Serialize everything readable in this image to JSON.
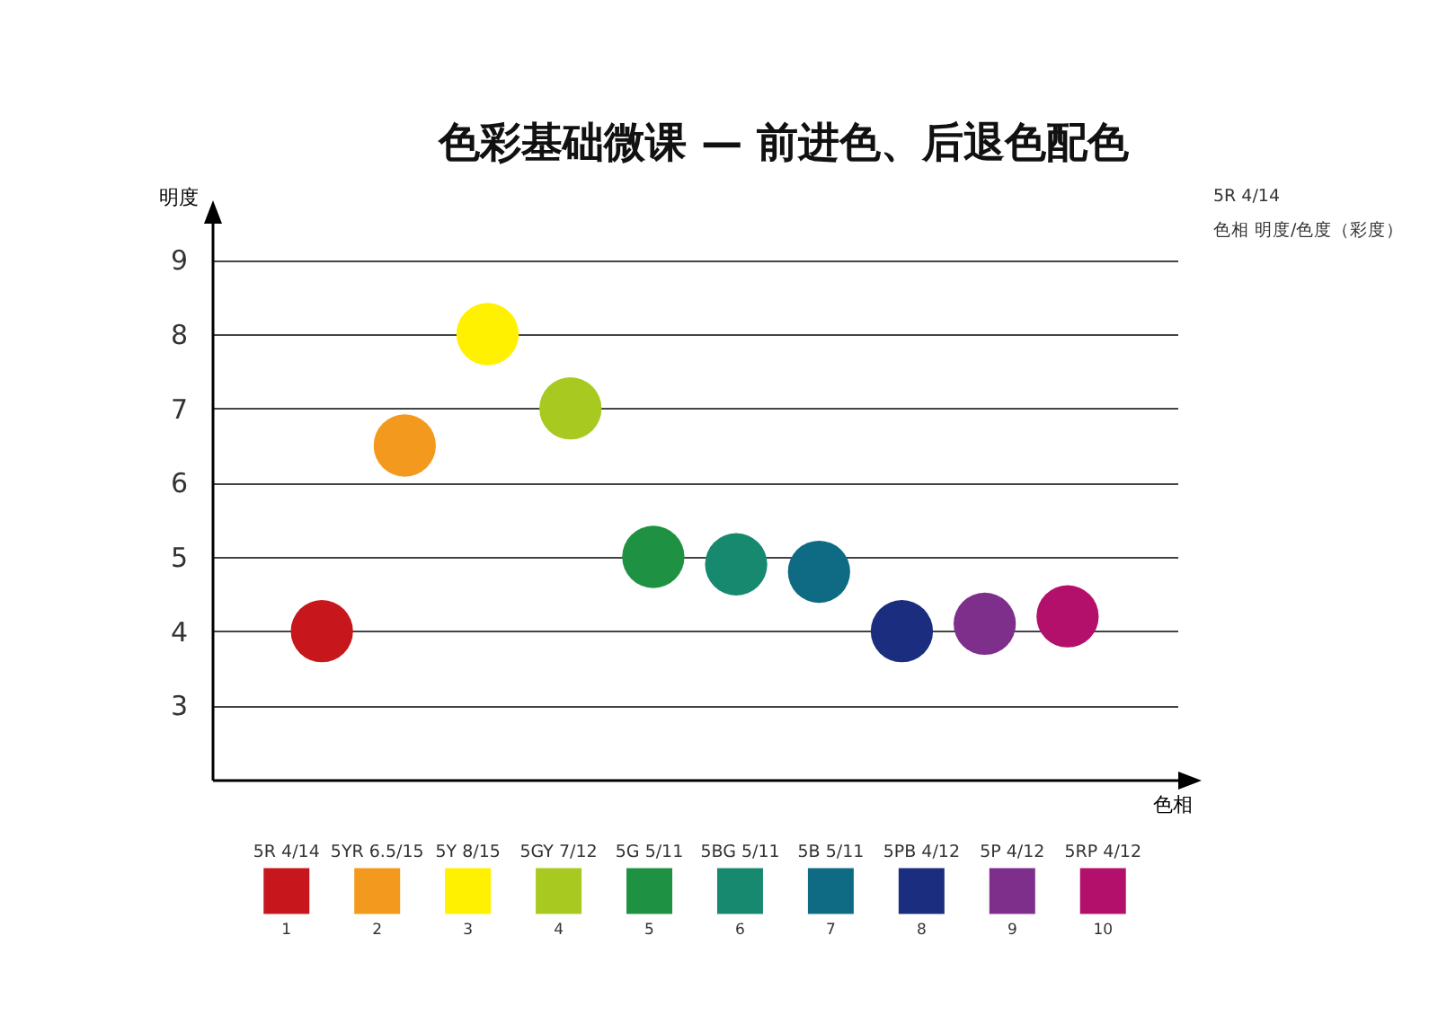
{
  "chart_data": {
    "type": "scatter",
    "title": "色彩基础微课 — 前进色、后退色配色",
    "xlabel": "色相",
    "ylabel": "明度",
    "categories": [
      "5R 4/14",
      "5YR 6.5/15",
      "5Y 8/15",
      "5GY 7/12",
      "5G 5/11",
      "5BG 5/11",
      "5B 5/11",
      "5PB 4/12",
      "5P 4/12",
      "5RP 4/12"
    ],
    "values": [
      4,
      6.5,
      8,
      7,
      5,
      4.9,
      4.8,
      4,
      4.1,
      4.2
    ],
    "colors": [
      "#c8161d",
      "#f39a1e",
      "#fff100",
      "#a8c920",
      "#1e9242",
      "#16896f",
      "#0f6b84",
      "#1a2d7e",
      "#7e2f8c",
      "#b3106c"
    ],
    "ylim": [
      2,
      9.5
    ],
    "yticks": [
      3,
      4,
      5,
      6,
      7,
      8,
      9
    ],
    "grid": "y",
    "marker": "circle",
    "annotations": [
      "5R 4/14",
      "色相  明度/色度（彩度）",
      "1",
      "2",
      "3",
      "4",
      "5",
      "6",
      "7",
      "8",
      "9",
      "10"
    ]
  }
}
